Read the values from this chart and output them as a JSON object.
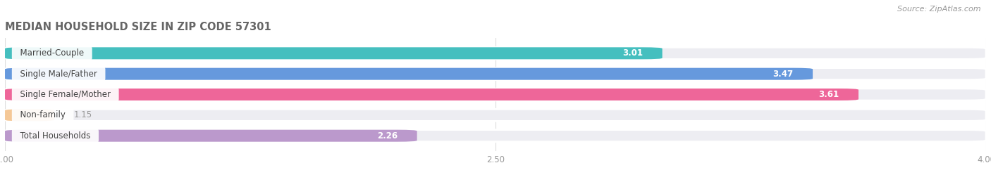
{
  "title": "MEDIAN HOUSEHOLD SIZE IN ZIP CODE 57301",
  "source": "Source: ZipAtlas.com",
  "categories": [
    "Married-Couple",
    "Single Male/Father",
    "Single Female/Mother",
    "Non-family",
    "Total Households"
  ],
  "values": [
    3.01,
    3.47,
    3.61,
    1.15,
    2.26
  ],
  "colors": [
    "#45bfbf",
    "#6699dd",
    "#ee6699",
    "#f5c897",
    "#bb99cc"
  ],
  "bar_bg_color": "#ededf2",
  "xlim_min": 1.0,
  "xlim_max": 4.0,
  "xticks": [
    1.0,
    2.5,
    4.0
  ],
  "xtick_labels": [
    "1.00",
    "2.50",
    "4.00"
  ],
  "title_color": "#666666",
  "source_color": "#999999",
  "value_text_inside_color": "#ffffff",
  "value_text_outside_color": "#999999",
  "label_text_color": "#444444",
  "bg_color": "#ffffff",
  "bar_height": 0.58,
  "bar_gap": 0.42,
  "figsize": [
    14.06,
    2.69
  ],
  "dpi": 100,
  "rounding_size": 0.06
}
